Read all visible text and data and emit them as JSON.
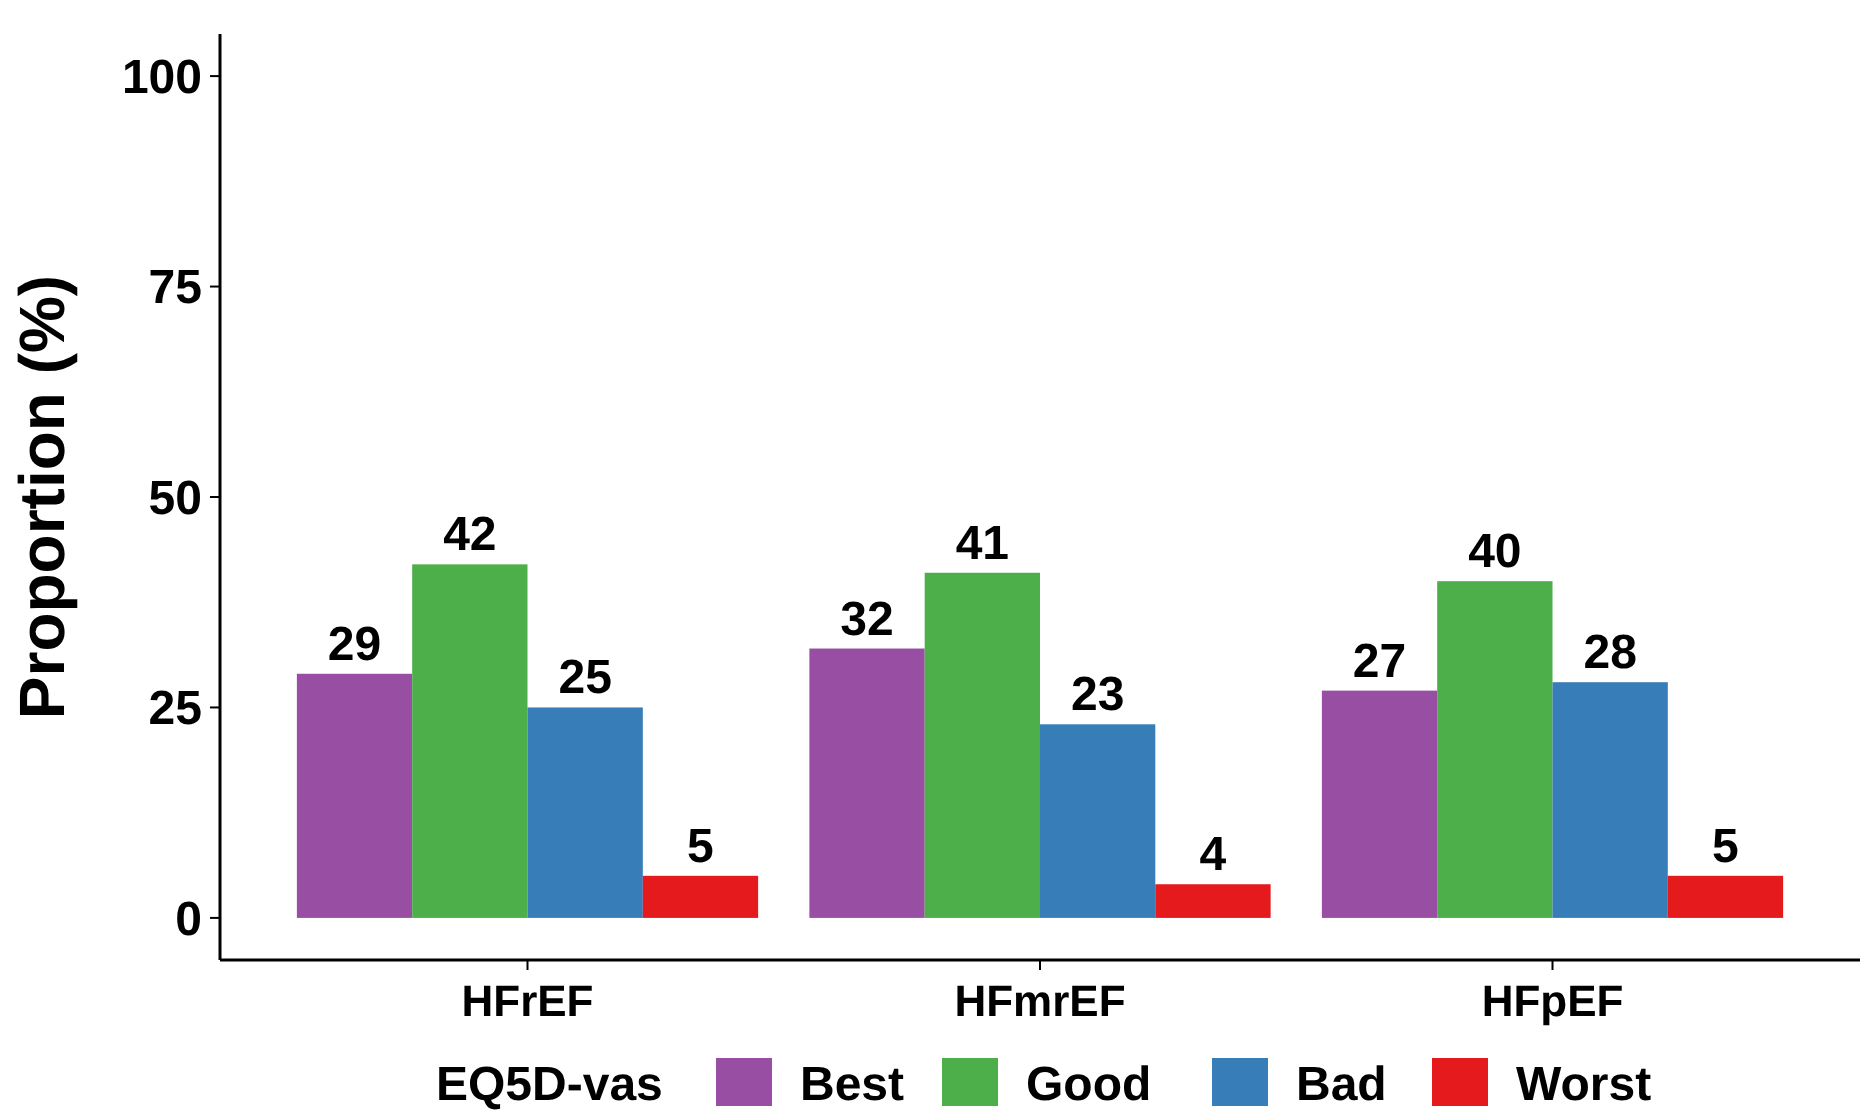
{
  "chart_data": {
    "type": "bar",
    "ylabel": "Proportion (%)",
    "legend_title": "EQ5D-vas",
    "categories": [
      "HFrEF",
      "HFmrEF",
      "HFpEF"
    ],
    "series": [
      {
        "name": "Best",
        "color": "#984ea3",
        "values": [
          29,
          32,
          27
        ]
      },
      {
        "name": "Good",
        "color": "#4daf4a",
        "values": [
          42,
          41,
          40
        ]
      },
      {
        "name": "Bad",
        "color": "#377eb8",
        "values": [
          25,
          23,
          28
        ]
      },
      {
        "name": "Worst",
        "color": "#e41a1c",
        "values": [
          5,
          4,
          5
        ]
      }
    ],
    "ylim": [
      -5,
      105
    ],
    "yticks": [
      0,
      25,
      50,
      75,
      100
    ],
    "data_labels": true,
    "legend": "bottom",
    "grid": false
  }
}
